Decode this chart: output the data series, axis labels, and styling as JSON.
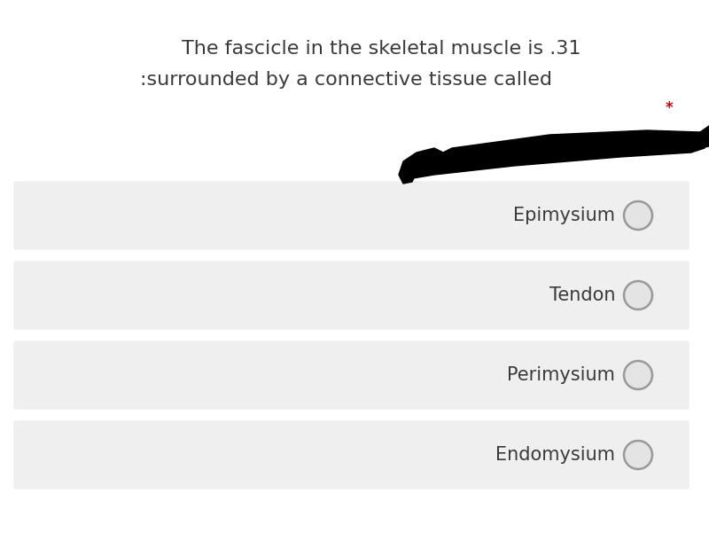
{
  "title_line1": "The fascicle in the skeletal muscle is .31",
  "title_line2": ":surrounded by a connective tissue called",
  "asterisk": "*",
  "options": [
    "Epimysium",
    "Tendon",
    "Perimysium",
    "Endomysium"
  ],
  "bg_color": "#ffffff",
  "box_color": "#efefef",
  "text_color": "#3a3a3a",
  "circle_face": "#e4e4e4",
  "circle_edge": "#999999",
  "asterisk_color": "#cc0000",
  "title_fontsize": 16,
  "option_fontsize": 15
}
